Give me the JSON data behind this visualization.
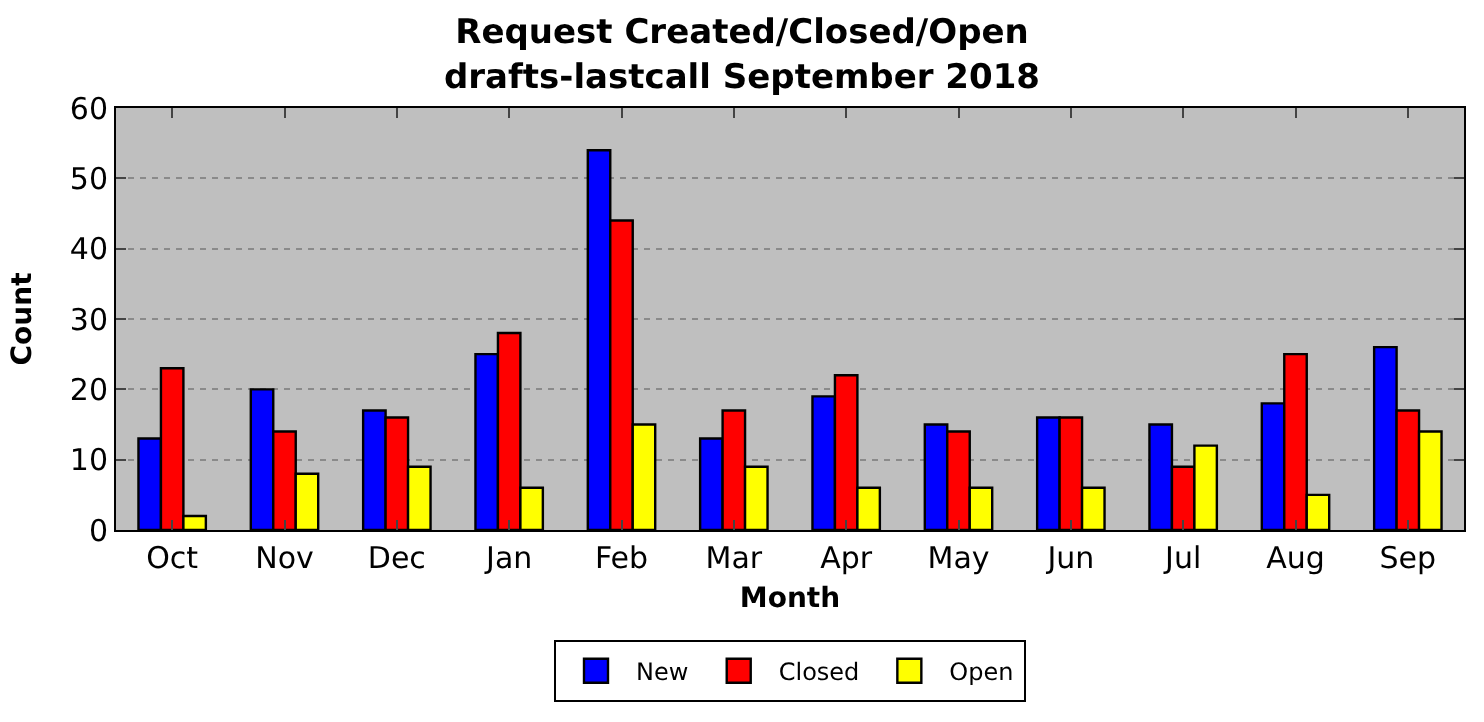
{
  "chart_data": {
    "type": "bar",
    "title": "Request Created/Closed/Open\ndrafts-lastcall September 2018",
    "xlabel": "Month",
    "ylabel": "Count",
    "categories": [
      "Oct",
      "Nov",
      "Dec",
      "Jan",
      "Feb",
      "Mar",
      "Apr",
      "May",
      "Jun",
      "Jul",
      "Aug",
      "Sep"
    ],
    "series": [
      {
        "name": "New",
        "color": "#0000ff",
        "values": [
          13,
          20,
          17,
          25,
          54,
          13,
          19,
          15,
          16,
          15,
          18,
          26
        ]
      },
      {
        "name": "Closed",
        "color": "#ff0000",
        "values": [
          23,
          14,
          16,
          28,
          44,
          17,
          22,
          14,
          16,
          9,
          25,
          17
        ]
      },
      {
        "name": "Open",
        "color": "#ffff00",
        "values": [
          2,
          8,
          9,
          6,
          15,
          9,
          6,
          6,
          6,
          12,
          5,
          14
        ]
      }
    ],
    "ylim": [
      0,
      60
    ],
    "yticks": [
      0,
      10,
      20,
      30,
      40,
      50,
      60
    ],
    "grid": "y",
    "legend": "bottom"
  }
}
